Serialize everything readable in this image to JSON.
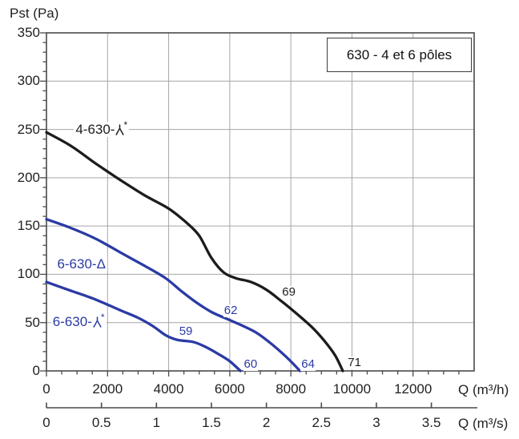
{
  "chart_data": {
    "type": "line",
    "title": "630 - 4 et 6 pôles",
    "x_axis": {
      "label": "Q (m³/h)",
      "ticks": [
        0,
        2000,
        4000,
        6000,
        8000,
        10000,
        12000
      ],
      "range": [
        0,
        14000
      ],
      "minor_step": 500
    },
    "x_axis_secondary": {
      "label": "Q (m³/s)",
      "ticks": [
        0,
        0.5,
        1,
        1.5,
        2,
        2.5,
        3,
        3.5
      ],
      "scale_to_primary": 3600
    },
    "y_axis": {
      "label": "Pst (Pa)",
      "ticks": [
        0,
        50,
        100,
        150,
        200,
        250,
        300,
        350
      ],
      "range": [
        0,
        350
      ],
      "minor_step": 10
    },
    "grid": "on",
    "colors": {
      "black_curve": "#1c1c1c",
      "blue_curve": "#2b3aa5",
      "gridline": "#a6a6a6",
      "frame": "#4a4a4a"
    },
    "series": [
      {
        "id": "4-630-wye",
        "name": "4-630-Y* (étoile)",
        "label": {
          "prefix": "4-630-",
          "symbol": "wye",
          "sup": "*",
          "anchor_q": 900,
          "anchor_pa": 250
        },
        "color": "#1c1c1c",
        "points": [
          [
            0,
            247
          ],
          [
            800,
            233
          ],
          [
            1600,
            215
          ],
          [
            2400,
            198
          ],
          [
            3200,
            182
          ],
          [
            4000,
            168
          ],
          [
            4600,
            153
          ],
          [
            5000,
            140
          ],
          [
            5400,
            117
          ],
          [
            5800,
            102
          ],
          [
            6200,
            96
          ],
          [
            6700,
            92
          ],
          [
            7200,
            84
          ],
          [
            7700,
            72
          ],
          [
            8200,
            59
          ],
          [
            8700,
            45
          ],
          [
            9100,
            31
          ],
          [
            9450,
            16
          ],
          [
            9700,
            0
          ]
        ]
      },
      {
        "id": "6-630-delta",
        "name": "6-630-Δ (triangle)",
        "label": {
          "prefix": "6-630-",
          "symbol": "delta",
          "symbol_char": "Δ",
          "sup": "",
          "anchor_q": 300,
          "anchor_pa": 110
        },
        "color": "#2b3aa5",
        "points": [
          [
            0,
            157
          ],
          [
            800,
            148
          ],
          [
            1600,
            137
          ],
          [
            2400,
            123
          ],
          [
            3200,
            109
          ],
          [
            3900,
            96
          ],
          [
            4400,
            83
          ],
          [
            4900,
            71
          ],
          [
            5400,
            61
          ],
          [
            5900,
            54
          ],
          [
            6400,
            47
          ],
          [
            6900,
            39
          ],
          [
            7400,
            27
          ],
          [
            7900,
            13
          ],
          [
            8300,
            0
          ]
        ]
      },
      {
        "id": "6-630-wye",
        "name": "6-630-Y* (étoile)",
        "label": {
          "prefix": "6-630-",
          "symbol": "wye",
          "sup": "*",
          "anchor_q": 150,
          "anchor_pa": 51
        },
        "color": "#2b3aa5",
        "points": [
          [
            0,
            92
          ],
          [
            800,
            83
          ],
          [
            1600,
            74
          ],
          [
            2400,
            63
          ],
          [
            3000,
            55
          ],
          [
            3500,
            46
          ],
          [
            3900,
            37
          ],
          [
            4300,
            32
          ],
          [
            4800,
            30
          ],
          [
            5200,
            25
          ],
          [
            5600,
            18
          ],
          [
            6000,
            10
          ],
          [
            6350,
            0
          ]
        ]
      }
    ],
    "annotations": [
      {
        "text": "69",
        "q": 7950,
        "pa": 81,
        "color": "#1c1c1c"
      },
      {
        "text": "71",
        "q": 10100,
        "pa": 8,
        "color": "#1c1c1c"
      },
      {
        "text": "62",
        "q": 6050,
        "pa": 62,
        "color": "#2b3aa5"
      },
      {
        "text": "59",
        "q": 4580,
        "pa": 41,
        "color": "#2b3aa5"
      },
      {
        "text": "60",
        "q": 6700,
        "pa": 7,
        "color": "#2b3aa5"
      },
      {
        "text": "64",
        "q": 8580,
        "pa": 7,
        "color": "#2b3aa5"
      }
    ]
  }
}
